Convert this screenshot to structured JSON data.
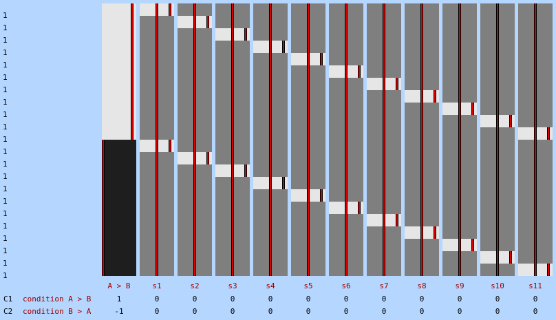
{
  "row_labels": [
    "1",
    "1",
    "1",
    "1",
    "1",
    "1",
    "1",
    "1",
    "1",
    "1",
    "1",
    "1",
    "1",
    "1",
    "1",
    "1",
    "1",
    "1",
    "1",
    "1",
    "1",
    "1"
  ],
  "columns": [
    "A > B",
    "s1",
    "s2",
    "s3",
    "s4",
    "s5",
    "s6",
    "s7",
    "s8",
    "s9",
    "s10",
    "s11"
  ],
  "colors": {
    "background": "#b4d6ff",
    "regressor_grey": "#7f7f7f",
    "block_light": "#e6e6e6",
    "block_dark": "#1e1e1e",
    "line_red": "#e00000",
    "label_red": "#a00000"
  },
  "contrasts": [
    {
      "id": "C1",
      "name": "condition A > B",
      "weights": [
        "1",
        "0",
        "0",
        "0",
        "0",
        "0",
        "0",
        "0",
        "0",
        "0",
        "0",
        "0"
      ]
    },
    {
      "id": "C2",
      "name": "condition B > A",
      "weights": [
        "-1",
        "0",
        "0",
        "0",
        "0",
        "0",
        "0",
        "0",
        "0",
        "0",
        "0",
        "0"
      ]
    }
  ]
}
